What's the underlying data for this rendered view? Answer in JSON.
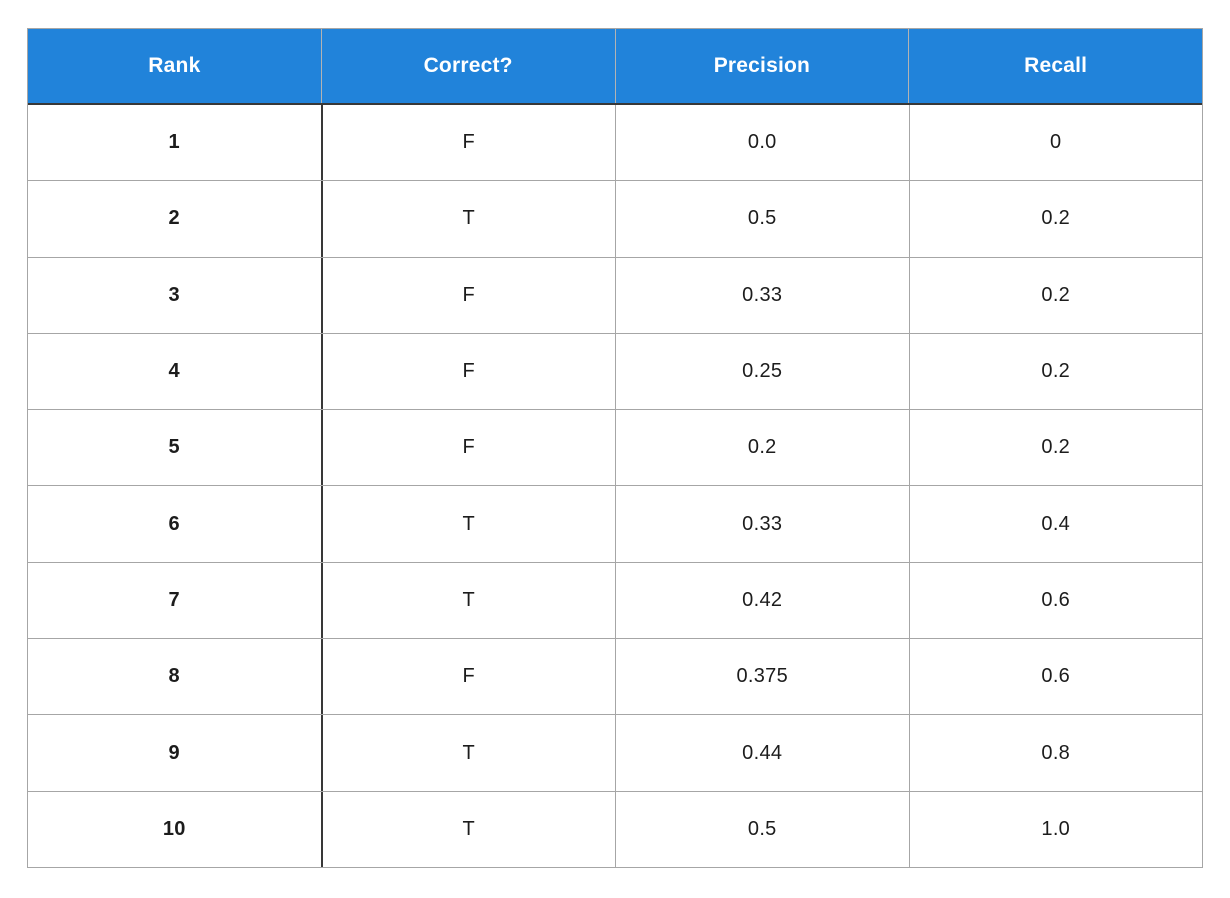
{
  "colors": {
    "header_bg": "#2183da",
    "header_text": "#ffffff",
    "grid_light": "#a6a6a6",
    "grid_dark": "#383838",
    "body_text": "#1c1c1c",
    "row_bg": "#ffffff"
  },
  "table": {
    "columns": [
      {
        "label": "Rank"
      },
      {
        "label": "Correct?"
      },
      {
        "label": "Precision"
      },
      {
        "label": "Recall"
      }
    ],
    "rows": [
      {
        "rank": "1",
        "correct": "F",
        "precision": "0.0",
        "recall": "0"
      },
      {
        "rank": "2",
        "correct": "T",
        "precision": "0.5",
        "recall": "0.2"
      },
      {
        "rank": "3",
        "correct": "F",
        "precision": "0.33",
        "recall": "0.2"
      },
      {
        "rank": "4",
        "correct": "F",
        "precision": "0.25",
        "recall": "0.2"
      },
      {
        "rank": "5",
        "correct": "F",
        "precision": "0.2",
        "recall": "0.2"
      },
      {
        "rank": "6",
        "correct": "T",
        "precision": "0.33",
        "recall": "0.4"
      },
      {
        "rank": "7",
        "correct": "T",
        "precision": "0.42",
        "recall": "0.6"
      },
      {
        "rank": "8",
        "correct": "F",
        "precision": "0.375",
        "recall": "0.6"
      },
      {
        "rank": "9",
        "correct": "T",
        "precision": "0.44",
        "recall": "0.8"
      },
      {
        "rank": "10",
        "correct": "T",
        "precision": "0.5",
        "recall": "1.0"
      }
    ]
  },
  "chart_data": {
    "type": "table",
    "title": "",
    "columns": [
      "Rank",
      "Correct?",
      "Precision",
      "Recall"
    ],
    "rows": [
      [
        1,
        "F",
        0.0,
        0.0
      ],
      [
        2,
        "T",
        0.5,
        0.2
      ],
      [
        3,
        "F",
        0.33,
        0.2
      ],
      [
        4,
        "F",
        0.25,
        0.2
      ],
      [
        5,
        "F",
        0.2,
        0.2
      ],
      [
        6,
        "T",
        0.33,
        0.4
      ],
      [
        7,
        "T",
        0.42,
        0.6
      ],
      [
        8,
        "F",
        0.375,
        0.6
      ],
      [
        9,
        "T",
        0.44,
        0.8
      ],
      [
        10,
        "T",
        0.5,
        1.0
      ]
    ],
    "layout": {
      "header_position": "top",
      "grid": "on",
      "legend": "none"
    }
  }
}
